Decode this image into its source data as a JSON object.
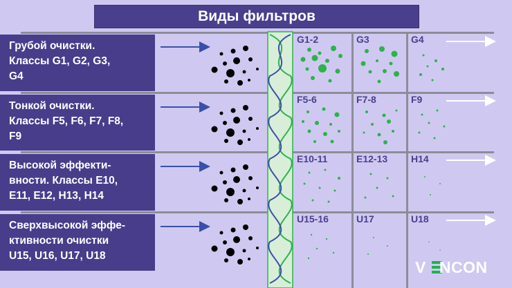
{
  "title": "Виды фильтров",
  "rows": [
    {
      "label": "Грубой очистки.\nКлассы G1, G2, G3,\nG4",
      "cells": [
        "G1-2",
        "G3",
        "G4"
      ]
    },
    {
      "label": "Тонкой очистки.\nКлассы F5, F6, F7, F8,\nF9",
      "cells": [
        "F5-6",
        "F7-8",
        "F9"
      ]
    },
    {
      "label": "Высокой эффекти-\nвности. Классы E10,\nE11, E12, H13, H14",
      "cells": [
        "E10-11",
        "E12-13",
        "H14"
      ]
    },
    {
      "label": "Сверхвысокой эффе-\nктивности очистки\nU15, U16, U17, U18",
      "cells": [
        "U15-16",
        "U17",
        "U18"
      ]
    }
  ],
  "logo": {
    "before": "V",
    "after": "NCON",
    "brand_color": "#1fb34a"
  },
  "colors": {
    "title_bg": "#4a3f8c",
    "label_bg": "#483d8b",
    "particle_green": "#2cb34a",
    "arrow_blue": "#3a4fa8",
    "background": "#cfc9f1"
  }
}
